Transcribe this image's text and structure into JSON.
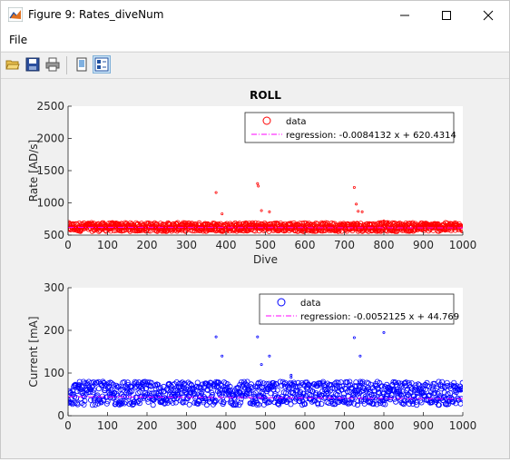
{
  "window": {
    "title": "Figure 9: Rates_diveNum",
    "minimize_glyph": "—",
    "maximize_glyph": "☐",
    "close_glyph": "✕"
  },
  "menu": {
    "file": "File"
  },
  "toolbar": {
    "buttons": [
      {
        "icon": "open-folder-icon"
      },
      {
        "icon": "save-icon"
      },
      {
        "icon": "print-icon"
      },
      {
        "icon": "dock-figure-icon"
      },
      {
        "icon": "property-editor-icon"
      }
    ]
  },
  "chart_data": [
    {
      "type": "scatter",
      "title": "ROLL",
      "xlabel": "Dive",
      "ylabel": "Rate [AD/s]",
      "xlim": [
        0,
        1000
      ],
      "ylim": [
        500,
        2500
      ],
      "xticks": [
        "0",
        "100",
        "200",
        "300",
        "400",
        "500",
        "600",
        "700",
        "800",
        "900",
        "1000"
      ],
      "yticks": [
        "500",
        "1000",
        "1500",
        "2000",
        "2500"
      ],
      "legend_position": "top-right",
      "series": [
        {
          "name": "data",
          "color": "#ff0000",
          "marker": "circle",
          "band": [
            560,
            690
          ],
          "outliers": [
            [
              375,
              1160
            ],
            [
              390,
              830
            ],
            [
              480,
              1300
            ],
            [
              482,
              1260
            ],
            [
              490,
              880
            ],
            [
              510,
              860
            ],
            [
              725,
              1240
            ],
            [
              730,
              980
            ],
            [
              735,
              870
            ],
            [
              745,
              860
            ],
            [
              565,
              700
            ],
            [
              800,
              720
            ],
            [
              810,
              710
            ]
          ]
        },
        {
          "name": "regression: -0.0084132 x + 620.4314",
          "color": "#ff00ff",
          "style": "dashdot",
          "slope": -0.0084132,
          "intercept": 620.4314
        }
      ]
    },
    {
      "type": "scatter",
      "xlabel": "",
      "ylabel": "Current [mA]",
      "xlim": [
        0,
        1000
      ],
      "ylim": [
        0,
        300
      ],
      "xticks": [
        "0",
        "100",
        "200",
        "300",
        "400",
        "500",
        "600",
        "700",
        "800",
        "900",
        "1000"
      ],
      "yticks": [
        "0",
        "100",
        "200",
        "300"
      ],
      "legend_position": "top-right",
      "series": [
        {
          "name": "data",
          "color": "#0000ff",
          "marker": "circle",
          "band": [
            25,
            80
          ],
          "outliers": [
            [
              375,
              185
            ],
            [
              390,
              140
            ],
            [
              480,
              185
            ],
            [
              490,
              120
            ],
            [
              510,
              140
            ],
            [
              725,
              183
            ],
            [
              740,
              140
            ],
            [
              800,
              195
            ],
            [
              565,
              95
            ],
            [
              565,
              90
            ]
          ]
        },
        {
          "name": "regression: -0.0052125 x + 44.769",
          "color": "#ff00ff",
          "style": "dashdot",
          "slope": -0.0052125,
          "intercept": 44.769
        }
      ]
    }
  ]
}
